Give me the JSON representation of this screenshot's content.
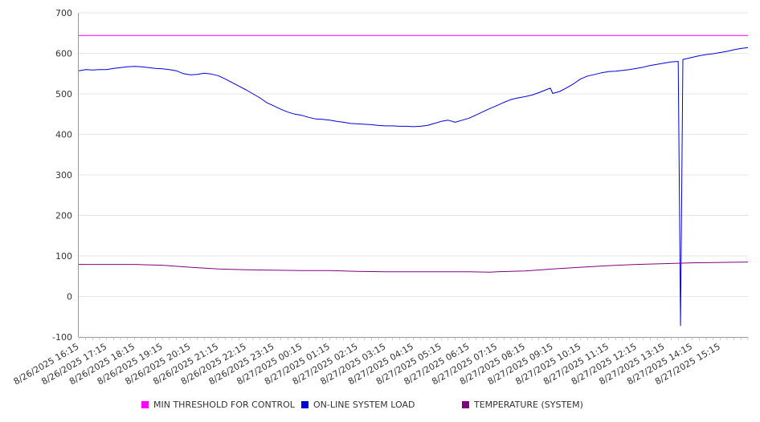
{
  "chart_data": {
    "type": "line",
    "ylim": [
      -100,
      700
    ],
    "yticks": [
      -100,
      0,
      100,
      200,
      300,
      400,
      500,
      600,
      700
    ],
    "x_tick_labels": [
      "8/26/2025 16:15",
      "8/26/2025 17:15",
      "8/26/2025 18:15",
      "8/26/2025 19:15",
      "8/26/2025 20:15",
      "8/26/2025 21:15",
      "8/26/2025 22:15",
      "8/26/2025 23:15",
      "8/27/2025 00:15",
      "8/27/2025 01:15",
      "8/27/2025 02:15",
      "8/27/2025 03:15",
      "8/27/2025 04:15",
      "8/27/2025 05:15",
      "8/27/2025 06:15",
      "8/27/2025 07:15",
      "8/27/2025 08:15",
      "8/27/2025 09:15",
      "8/27/2025 10:15",
      "8/27/2025 11:15",
      "8/27/2025 12:15",
      "8/27/2025 13:15",
      "8/27/2025 14:15",
      "8/27/2025 15:15"
    ],
    "x_range": [
      "8/26/2025 16:15",
      "8/27/2025 16:15"
    ],
    "grid": "horizontal",
    "legend_position": "bottom",
    "series": [
      {
        "name": "MIN THRESHOLD FOR CONTROL",
        "color": "#ff00ff",
        "points": [
          [
            "8/26/2025 16:15",
            644
          ],
          [
            "8/27/2025 16:15",
            644
          ]
        ]
      },
      {
        "name": "ON-LINE SYSTEM LOAD",
        "color": "#0000dd",
        "points": [
          [
            "8/26/2025 16:15",
            557
          ],
          [
            "8/26/2025 16:30",
            560
          ],
          [
            "8/26/2025 16:45",
            559
          ],
          [
            "8/26/2025 17:00",
            560
          ],
          [
            "8/26/2025 17:15",
            560
          ],
          [
            "8/26/2025 17:30",
            563
          ],
          [
            "8/26/2025 17:45",
            565
          ],
          [
            "8/26/2025 18:00",
            567
          ],
          [
            "8/26/2025 18:15",
            568
          ],
          [
            "8/26/2025 18:30",
            567
          ],
          [
            "8/26/2025 18:45",
            565
          ],
          [
            "8/26/2025 19:00",
            563
          ],
          [
            "8/26/2025 19:15",
            562
          ],
          [
            "8/26/2025 19:30",
            560
          ],
          [
            "8/26/2025 19:45",
            557
          ],
          [
            "8/26/2025 20:00",
            550
          ],
          [
            "8/26/2025 20:15",
            547
          ],
          [
            "8/26/2025 20:30",
            548
          ],
          [
            "8/26/2025 20:45",
            551
          ],
          [
            "8/26/2025 21:00",
            549
          ],
          [
            "8/26/2025 21:15",
            545
          ],
          [
            "8/26/2025 21:30",
            537
          ],
          [
            "8/26/2025 21:45",
            528
          ],
          [
            "8/26/2025 22:00",
            519
          ],
          [
            "8/26/2025 22:15",
            510
          ],
          [
            "8/26/2025 22:30",
            500
          ],
          [
            "8/26/2025 22:45",
            490
          ],
          [
            "8/26/2025 23:00",
            478
          ],
          [
            "8/26/2025 23:15",
            470
          ],
          [
            "8/26/2025 23:30",
            462
          ],
          [
            "8/26/2025 23:45",
            455
          ],
          [
            "8/27/2025 00:00",
            450
          ],
          [
            "8/27/2025 00:15",
            447
          ],
          [
            "8/27/2025 00:30",
            442
          ],
          [
            "8/27/2025 00:45",
            438
          ],
          [
            "8/27/2025 01:00",
            437
          ],
          [
            "8/27/2025 01:15",
            435
          ],
          [
            "8/27/2025 01:30",
            432
          ],
          [
            "8/27/2025 01:45",
            430
          ],
          [
            "8/27/2025 02:00",
            427
          ],
          [
            "8/27/2025 02:15",
            426
          ],
          [
            "8/27/2025 02:30",
            425
          ],
          [
            "8/27/2025 02:45",
            424
          ],
          [
            "8/27/2025 03:00",
            422
          ],
          [
            "8/27/2025 03:15",
            421
          ],
          [
            "8/27/2025 03:30",
            421
          ],
          [
            "8/27/2025 03:45",
            420
          ],
          [
            "8/27/2025 04:00",
            420
          ],
          [
            "8/27/2025 04:15",
            419
          ],
          [
            "8/27/2025 04:30",
            420
          ],
          [
            "8/27/2025 04:45",
            422
          ],
          [
            "8/27/2025 05:00",
            427
          ],
          [
            "8/27/2025 05:15",
            432
          ],
          [
            "8/27/2025 05:30",
            435
          ],
          [
            "8/27/2025 05:45",
            430
          ],
          [
            "8/27/2025 06:00",
            435
          ],
          [
            "8/27/2025 06:15",
            440
          ],
          [
            "8/27/2025 06:30",
            448
          ],
          [
            "8/27/2025 06:45",
            456
          ],
          [
            "8/27/2025 07:00",
            464
          ],
          [
            "8/27/2025 07:15",
            471
          ],
          [
            "8/27/2025 07:30",
            479
          ],
          [
            "8/27/2025 07:45",
            486
          ],
          [
            "8/27/2025 08:00",
            490
          ],
          [
            "8/27/2025 08:15",
            493
          ],
          [
            "8/27/2025 08:30",
            497
          ],
          [
            "8/27/2025 08:45",
            503
          ],
          [
            "8/27/2025 09:00",
            510
          ],
          [
            "8/27/2025 09:10",
            514
          ],
          [
            "8/27/2025 09:15",
            501
          ],
          [
            "8/27/2025 09:30",
            506
          ],
          [
            "8/27/2025 09:45",
            515
          ],
          [
            "8/27/2025 10:00",
            525
          ],
          [
            "8/27/2025 10:15",
            537
          ],
          [
            "8/27/2025 10:30",
            544
          ],
          [
            "8/27/2025 10:45",
            548
          ],
          [
            "8/27/2025 11:00",
            552
          ],
          [
            "8/27/2025 11:15",
            555
          ],
          [
            "8/27/2025 11:30",
            556
          ],
          [
            "8/27/2025 11:45",
            558
          ],
          [
            "8/27/2025 12:00",
            560
          ],
          [
            "8/27/2025 12:15",
            563
          ],
          [
            "8/27/2025 12:30",
            566
          ],
          [
            "8/27/2025 12:45",
            570
          ],
          [
            "8/27/2025 13:00",
            573
          ],
          [
            "8/27/2025 13:15",
            576
          ],
          [
            "8/27/2025 13:30",
            579
          ],
          [
            "8/27/2025 13:45",
            580
          ],
          [
            "8/27/2025 13:50",
            -72
          ],
          [
            "8/27/2025 13:55",
            585
          ],
          [
            "8/27/2025 14:15",
            590
          ],
          [
            "8/27/2025 14:30",
            594
          ],
          [
            "8/27/2025 14:45",
            597
          ],
          [
            "8/27/2025 15:00",
            599
          ],
          [
            "8/27/2025 15:15",
            602
          ],
          [
            "8/27/2025 15:30",
            605
          ],
          [
            "8/27/2025 15:45",
            609
          ],
          [
            "8/27/2025 16:00",
            612
          ],
          [
            "8/27/2025 16:15",
            614
          ]
        ]
      },
      {
        "name": "TEMPERATURE (SYSTEM)",
        "color": "#800080",
        "points": [
          [
            "8/26/2025 16:15",
            79
          ],
          [
            "8/26/2025 17:15",
            79
          ],
          [
            "8/26/2025 18:15",
            79
          ],
          [
            "8/26/2025 19:15",
            77
          ],
          [
            "8/26/2025 20:15",
            72
          ],
          [
            "8/26/2025 21:15",
            68
          ],
          [
            "8/26/2025 22:15",
            66
          ],
          [
            "8/26/2025 23:15",
            65
          ],
          [
            "8/27/2025 00:15",
            64
          ],
          [
            "8/27/2025 01:15",
            64
          ],
          [
            "8/27/2025 02:15",
            62
          ],
          [
            "8/27/2025 03:15",
            61
          ],
          [
            "8/27/2025 04:15",
            61
          ],
          [
            "8/27/2025 05:15",
            61
          ],
          [
            "8/27/2025 06:15",
            61
          ],
          [
            "8/27/2025 07:00",
            60
          ],
          [
            "8/27/2025 07:15",
            61
          ],
          [
            "8/27/2025 08:15",
            63
          ],
          [
            "8/27/2025 09:15",
            68
          ],
          [
            "8/27/2025 10:15",
            72
          ],
          [
            "8/27/2025 11:15",
            76
          ],
          [
            "8/27/2025 12:15",
            79
          ],
          [
            "8/27/2025 13:15",
            81
          ],
          [
            "8/27/2025 14:15",
            83
          ],
          [
            "8/27/2025 15:15",
            84
          ],
          [
            "8/27/2025 16:15",
            85
          ]
        ]
      }
    ]
  }
}
